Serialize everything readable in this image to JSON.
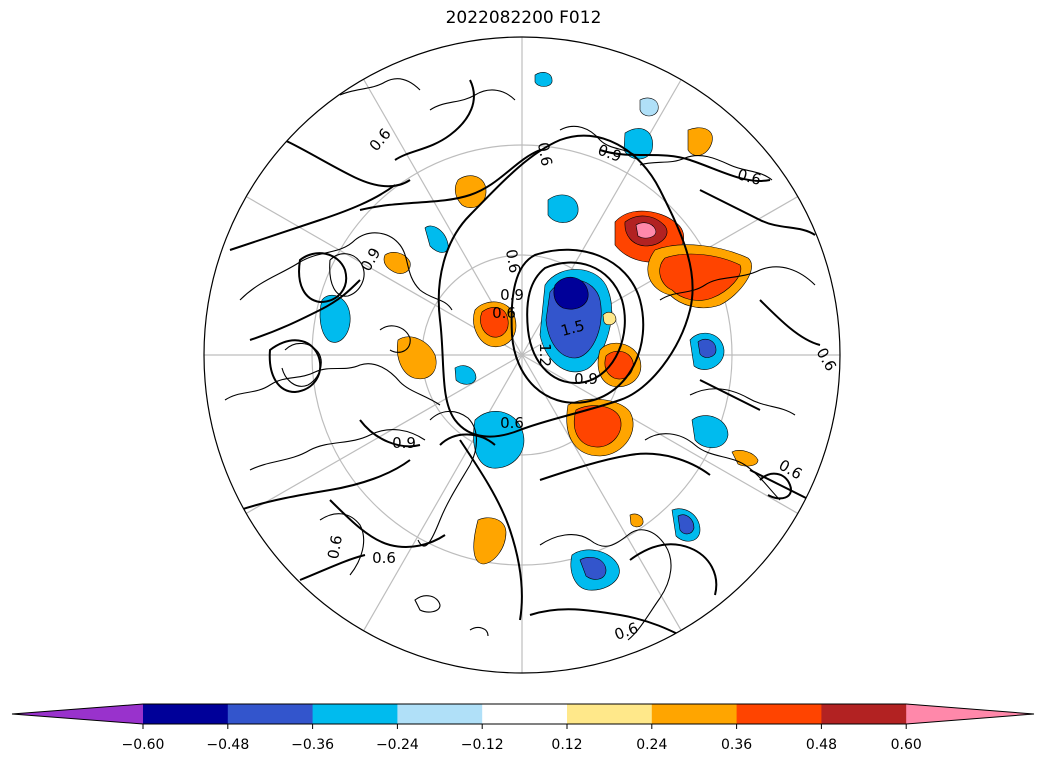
{
  "title": "2022082200 F012",
  "colorbar": {
    "extend_low_color": "#9932cc",
    "extend_high_color": "#ff88aa",
    "colors": [
      "#000099",
      "#3355cc",
      "#00bbee",
      "#b0e0f8",
      "#ffffff",
      "#ffe88a",
      "#ffa500",
      "#ff4400",
      "#b22222"
    ],
    "tick_labels": [
      "−0.60",
      "−0.48",
      "−0.36",
      "−0.24",
      "−0.12",
      "0.12",
      "0.24",
      "0.36",
      "0.48",
      "0.60"
    ]
  },
  "contour_labels": [
    "0.6",
    "0.9",
    "0.9",
    "0.6",
    "0.6",
    "0.9",
    "0.6",
    "1.5",
    "1.2",
    "0.9",
    "0.6",
    "0.9",
    "0.6",
    "0.6",
    "0.6",
    "0.6",
    "0.6",
    "0.6"
  ]
}
